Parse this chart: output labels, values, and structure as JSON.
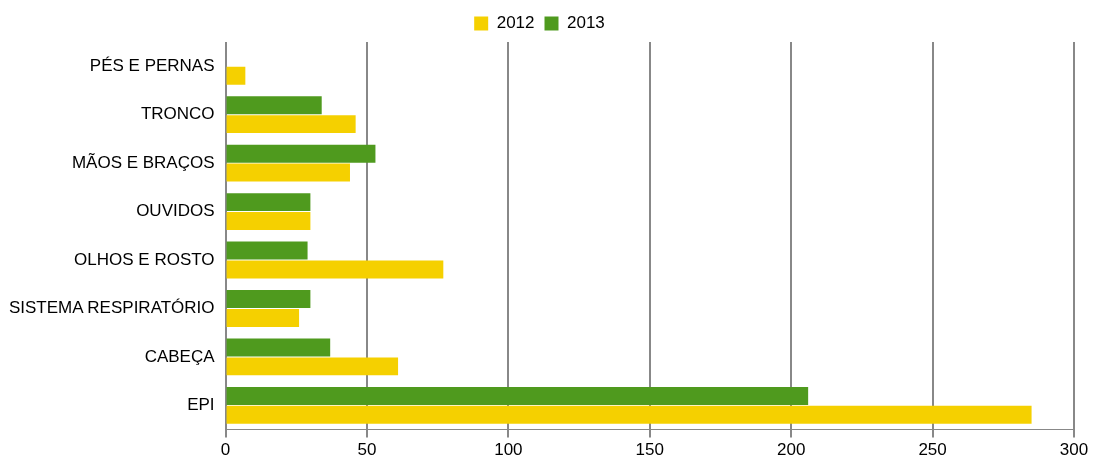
{
  "chart_data": {
    "type": "bar",
    "orientation": "horizontal",
    "categories": [
      "PÉS E PERNAS",
      "TRONCO",
      "MÃOS E BRAÇOS",
      "OUVIDOS",
      "OLHOS E ROSTO",
      "SISTEMA RESPIRATÓRIO",
      "CABEÇA",
      "EPI"
    ],
    "series": [
      {
        "name": "2012",
        "color": "#f5d000",
        "values": [
          7,
          46,
          44,
          30,
          77,
          26,
          61,
          285
        ]
      },
      {
        "name": "2013",
        "color": "#4f9a1e",
        "values": [
          0,
          34,
          53,
          30,
          29,
          30,
          37,
          206
        ]
      }
    ],
    "xlim": [
      0,
      300
    ],
    "xticks": [
      0,
      50,
      100,
      150,
      200,
      250,
      300
    ],
    "grid": "x",
    "legend": "top"
  }
}
